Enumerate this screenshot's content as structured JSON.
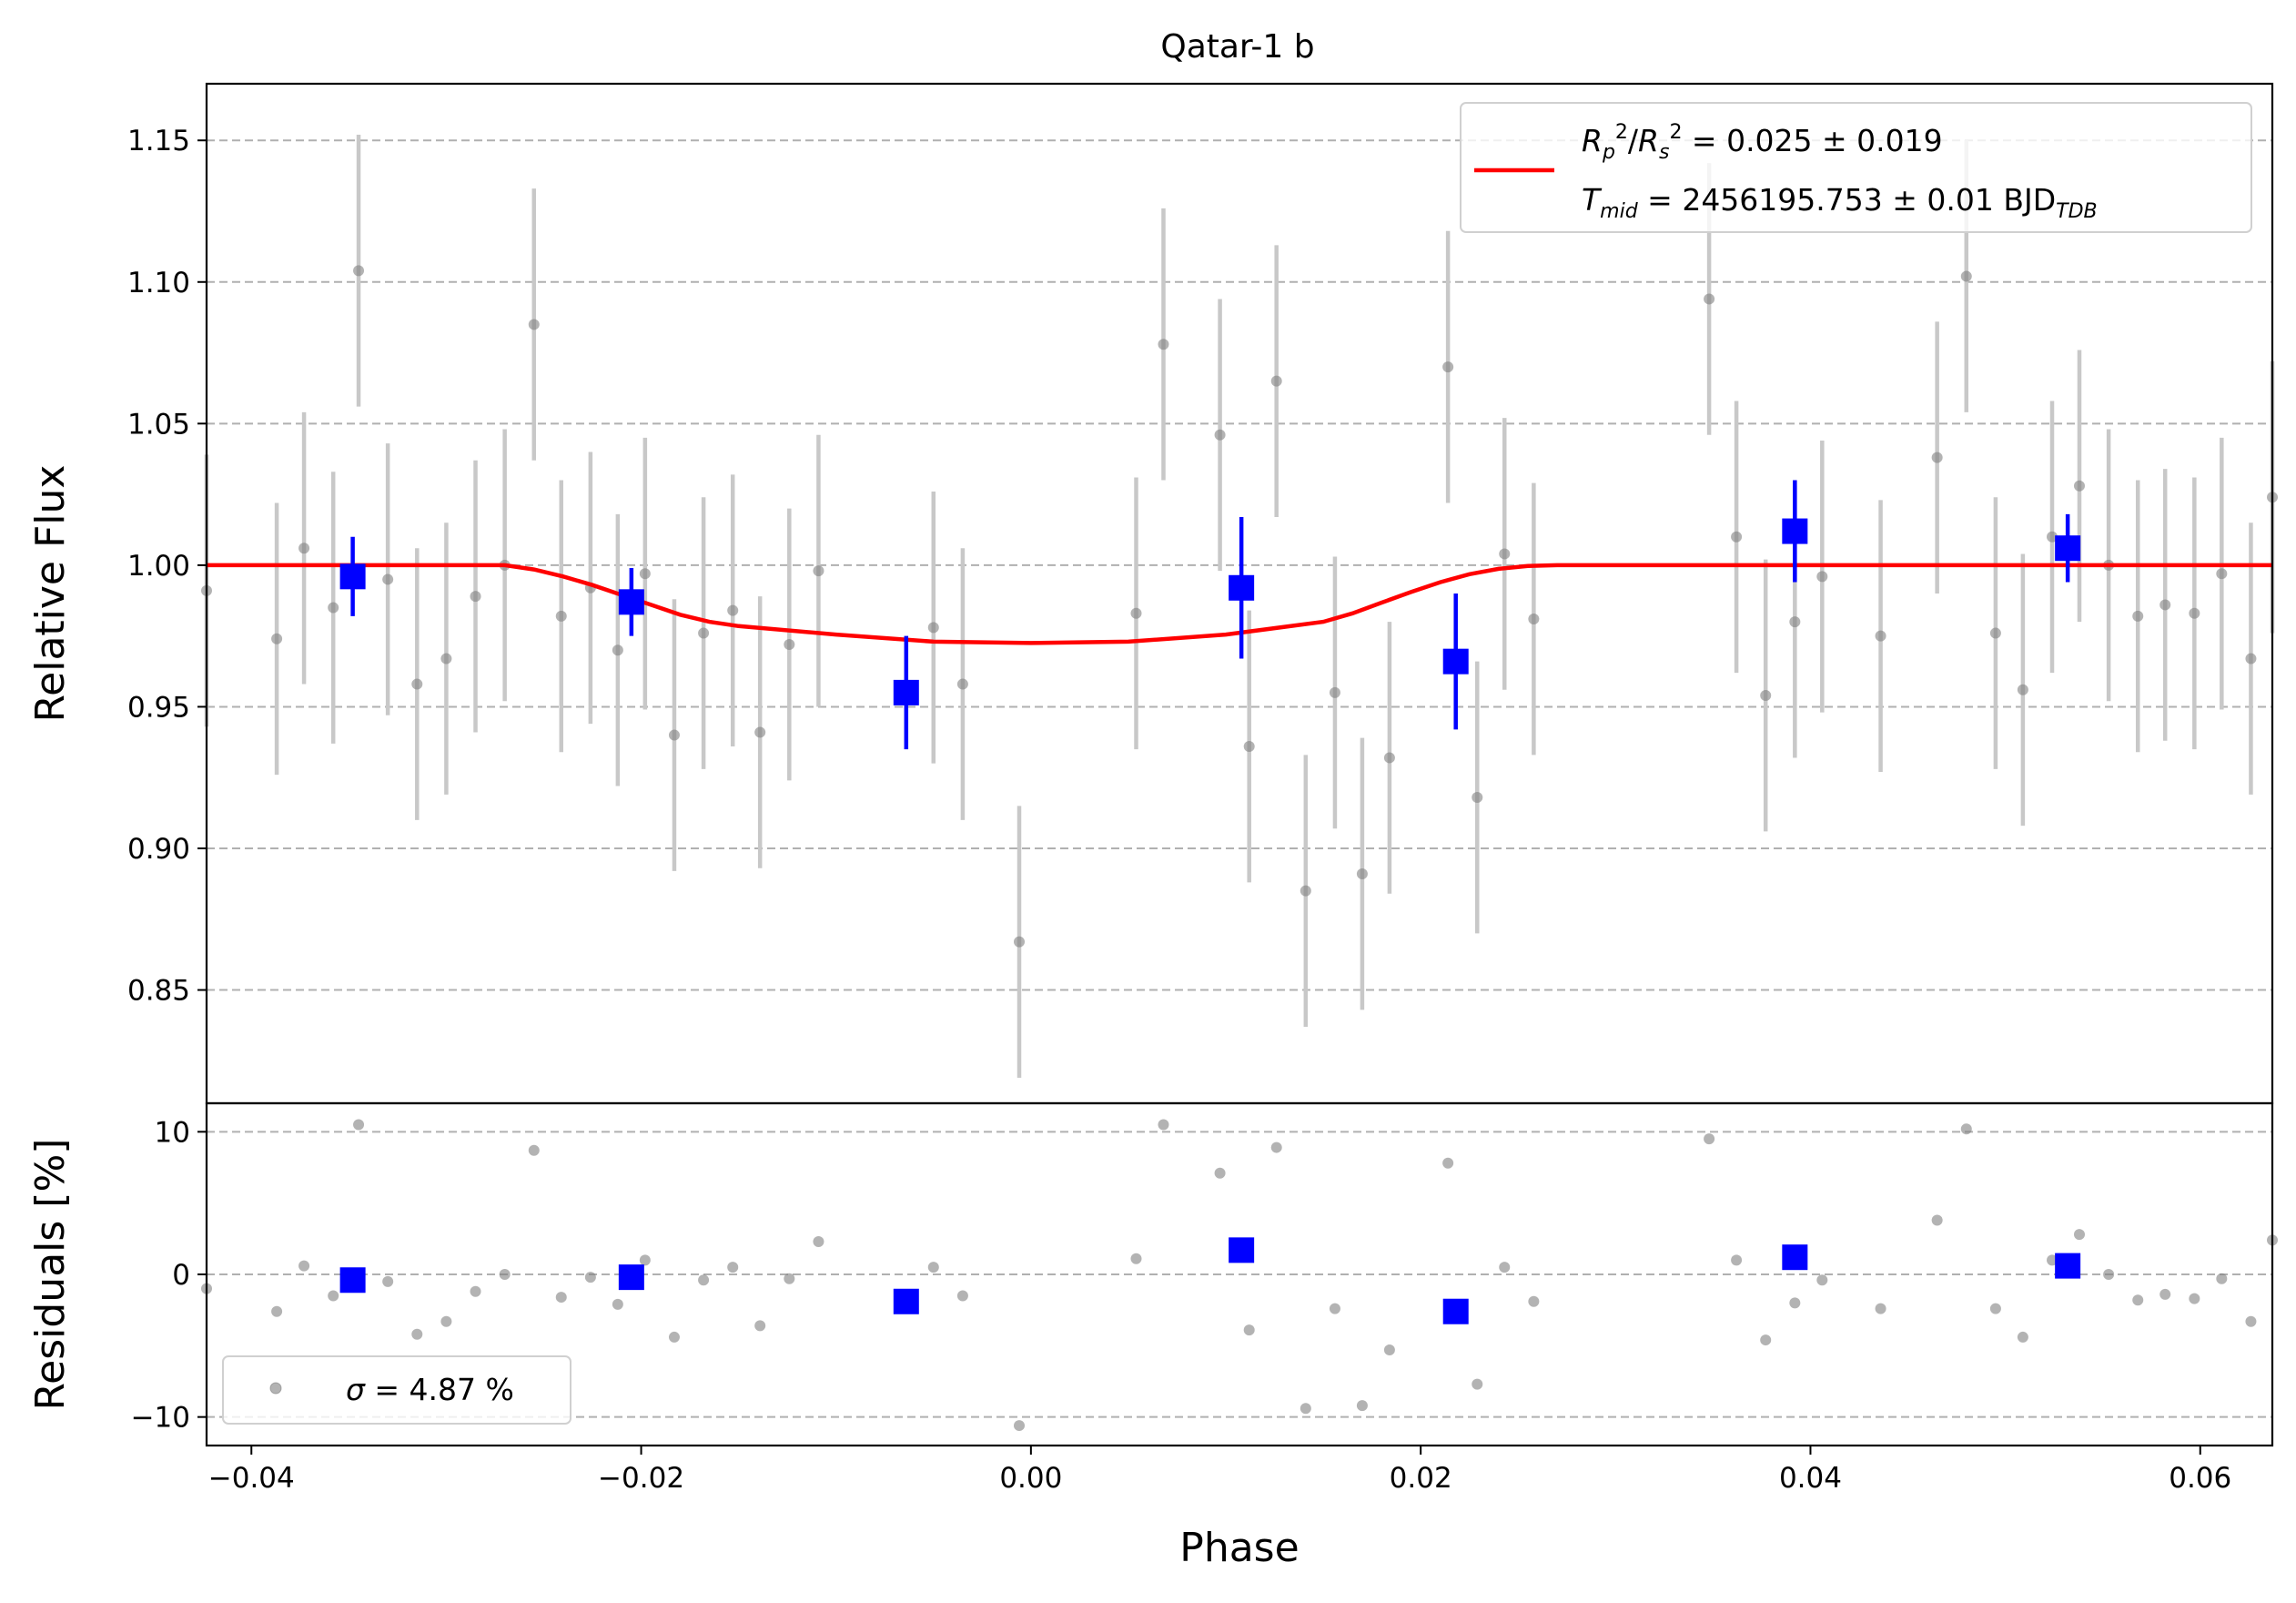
{
  "chart_data": {
    "type": "scatter",
    "title": "Qatar-1 b",
    "xlabel": "Phase",
    "xlim": [
      -0.0423,
      0.0637
    ],
    "x_ticks": [
      -0.04,
      -0.02,
      0.0,
      0.02,
      0.04,
      0.06
    ],
    "x_tick_labels": [
      "−0.04",
      "−0.02",
      "0.00",
      "0.02",
      "0.04",
      "0.06"
    ],
    "grid": "horizontal dashed",
    "top_panel": {
      "ylabel": "Relative Flux",
      "ylim": [
        0.81,
        1.17
      ],
      "y_ticks": [
        0.85,
        0.9,
        0.95,
        1.0,
        1.05,
        1.1,
        1.15
      ],
      "y_tick_labels": [
        "0.85",
        "0.90",
        "0.95",
        "1.00",
        "1.05",
        "1.10",
        "1.15"
      ],
      "legend": {
        "placement": "top-right",
        "line1": "R_p^2/R_s^2 = 0.025 ± 0.019",
        "line2": "T_mid = 2456195.753 ± 0.01 BJD_TDB"
      },
      "series": [
        {
          "type": "scatter_errorbar",
          "color": "#808080",
          "err_color": "#c8c8c8",
          "x": [
            -0.0423,
            -0.0387,
            -0.0373,
            -0.0358,
            -0.0345,
            -0.033,
            -0.0315,
            -0.03,
            -0.0285,
            -0.027,
            -0.0255,
            -0.0241,
            -0.0226,
            -0.0212,
            -0.0198,
            -0.0183,
            -0.0168,
            -0.0153,
            -0.0139,
            -0.0124,
            -0.0109,
            -0.005,
            -0.0035,
            -0.0006,
            0.0054,
            0.0068,
            0.0097,
            0.0112,
            0.0126,
            0.0141,
            0.0156,
            0.017,
            0.0184,
            0.0214,
            0.0229,
            0.0243,
            0.0258,
            0.0348,
            0.0362,
            0.0377,
            0.0392,
            0.0406,
            0.0436,
            0.0465,
            0.048,
            0.0495,
            0.0509,
            0.0524,
            0.0538,
            0.0553,
            0.0568,
            0.0582,
            0.0597,
            0.0611,
            0.0626,
            0.0637
          ],
          "y": [
            0.991,
            0.974,
            1.006,
            0.985,
            1.104,
            0.995,
            0.958,
            0.967,
            0.989,
            1.0,
            1.085,
            0.982,
            0.992,
            0.97,
            0.997,
            0.94,
            0.976,
            0.984,
            0.941,
            0.972,
            0.998,
            0.978,
            0.958,
            0.867,
            0.983,
            1.078,
            1.046,
            0.936,
            1.065,
            0.885,
            0.955,
            0.891,
            0.932,
            1.07,
            0.918,
            1.004,
            0.981,
            1.094,
            1.01,
            0.954,
            0.98,
            0.996,
            0.975,
            1.038,
            1.102,
            0.976,
            0.956,
            1.01,
            1.028,
            1.0,
            0.982,
            0.986,
            0.983,
            0.997,
            0.967,
            1.024
          ],
          "yerr": 0.048
        },
        {
          "type": "binned_errorbar",
          "color": "#0000ff",
          "x": [
            -0.0348,
            -0.0205,
            -0.0064,
            0.0108,
            0.0218,
            0.0392,
            0.0532
          ],
          "y": [
            0.996,
            0.987,
            0.955,
            0.992,
            0.966,
            1.012,
            1.006
          ],
          "yerr": [
            0.014,
            0.012,
            0.02,
            0.025,
            0.024,
            0.018,
            0.012
          ]
        },
        {
          "type": "line",
          "name": "R_p^2/R_s^2 = 0.025 ± 0.019 / T_mid = 2456195.753 ± 0.01 BJD_TDB",
          "color": "#ff0000",
          "x": [
            -0.0423,
            -0.027,
            -0.0255,
            -0.024,
            -0.0225,
            -0.021,
            -0.0195,
            -0.018,
            -0.0165,
            -0.015,
            -0.01,
            -0.005,
            0.0,
            0.005,
            0.01,
            0.015,
            0.0165,
            0.018,
            0.0195,
            0.021,
            0.0225,
            0.024,
            0.0255,
            0.027,
            0.0637
          ],
          "y": [
            1.0,
            1.0,
            0.9985,
            0.996,
            0.993,
            0.9895,
            0.986,
            0.9825,
            0.98,
            0.9785,
            0.9755,
            0.973,
            0.9725,
            0.973,
            0.9755,
            0.98,
            0.983,
            0.9868,
            0.9905,
            0.994,
            0.9968,
            0.9987,
            0.9997,
            1.0,
            1.0
          ]
        }
      ]
    },
    "bottom_panel": {
      "ylabel": "Residuals [%]",
      "ylim": [
        -12,
        12
      ],
      "y_ticks": [
        -10,
        0,
        10
      ],
      "y_tick_labels": [
        "−10",
        "0",
        "10"
      ],
      "legend": {
        "placement": "bottom-left",
        "label": "σ = 4.87 %"
      },
      "series": [
        {
          "type": "scatter",
          "color": "#808080",
          "x": [
            -0.0423,
            -0.0387,
            -0.0373,
            -0.0358,
            -0.0345,
            -0.033,
            -0.0315,
            -0.03,
            -0.0285,
            -0.027,
            -0.0255,
            -0.0241,
            -0.0226,
            -0.0212,
            -0.0198,
            -0.0183,
            -0.0168,
            -0.0153,
            -0.0139,
            -0.0124,
            -0.0109,
            -0.005,
            -0.0035,
            -0.0006,
            0.0054,
            0.0068,
            0.0097,
            0.0112,
            0.0126,
            0.0141,
            0.0156,
            0.017,
            0.0184,
            0.0214,
            0.0229,
            0.0243,
            0.0258,
            0.0348,
            0.0362,
            0.0377,
            0.0392,
            0.0406,
            0.0436,
            0.0465,
            0.048,
            0.0495,
            0.0509,
            0.0524,
            0.0538,
            0.0553,
            0.0568,
            0.0582,
            0.0597,
            0.0611,
            0.0626,
            0.0637
          ],
          "y": [
            -1.0,
            -2.6,
            0.6,
            -1.5,
            10.5,
            -0.5,
            -4.2,
            -3.3,
            -1.2,
            0.0,
            8.7,
            -1.6,
            -0.2,
            -2.1,
            1.0,
            -4.4,
            -0.4,
            0.5,
            -3.6,
            -0.3,
            2.3,
            0.5,
            -1.5,
            -10.6,
            1.1,
            10.5,
            7.1,
            -3.9,
            8.9,
            -9.4,
            -2.4,
            -9.2,
            -5.3,
            7.8,
            -7.7,
            0.5,
            -1.9,
            9.5,
            1.0,
            -4.6,
            -2.0,
            -0.4,
            -2.4,
            3.8,
            10.2,
            -2.4,
            -4.4,
            1.0,
            2.8,
            0.0,
            -1.8,
            -1.4,
            -1.7,
            -0.3,
            -3.3,
            2.4
          ]
        },
        {
          "type": "binned",
          "color": "#0000ff",
          "x": [
            -0.0348,
            -0.0205,
            -0.0064,
            0.0108,
            0.0218,
            0.0392,
            0.0532
          ],
          "y": [
            -0.4,
            -0.2,
            -1.9,
            1.7,
            -2.6,
            1.2,
            0.6
          ]
        }
      ]
    }
  }
}
